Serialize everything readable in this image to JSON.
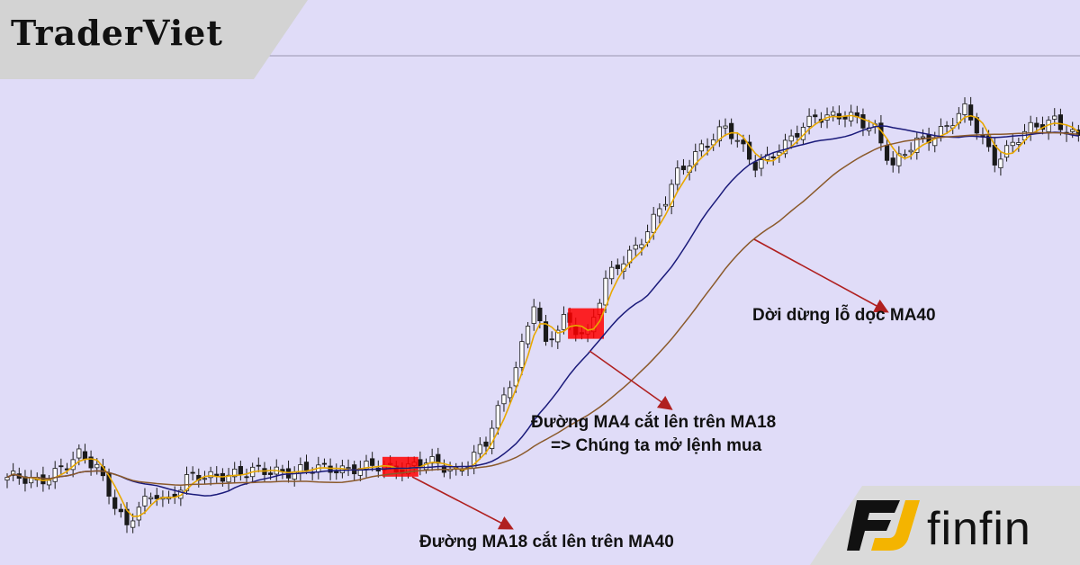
{
  "brand": {
    "top_left": "TraderViet",
    "bottom_right": "finfin"
  },
  "annotations": {
    "ma40": "Dời dừng lỗ dọc MA40",
    "ma4_line1": "Đường MA4 cắt lên trên MA18",
    "ma4_line2": "=> Chúng ta mở lệnh mua",
    "ma18": "Đường MA18 cắt lên trên MA40"
  },
  "colors": {
    "background": "#e0dcf8",
    "ma4": "#e8a800",
    "ma18": "#1a1a7a",
    "ma40": "#8b5a2b",
    "arrow": "#b02020",
    "signal_box": "#ff0000",
    "candle": "#1a1a1a"
  },
  "chart_data": {
    "type": "line",
    "xlabel": "",
    "ylabel": "",
    "grid": false,
    "legend": "none",
    "x_count": 180,
    "price_path": [
      [
        0,
        66
      ],
      [
        5,
        68
      ],
      [
        10,
        80
      ],
      [
        12,
        92
      ],
      [
        15,
        85
      ],
      [
        18,
        40
      ],
      [
        20,
        10
      ],
      [
        22,
        35
      ],
      [
        25,
        55
      ],
      [
        27,
        45
      ],
      [
        30,
        65
      ],
      [
        33,
        70
      ],
      [
        36,
        75
      ],
      [
        40,
        72
      ],
      [
        45,
        79
      ],
      [
        50,
        75
      ],
      [
        55,
        82
      ],
      [
        60,
        78
      ],
      [
        65,
        82
      ],
      [
        70,
        84
      ],
      [
        75,
        78
      ],
      [
        80,
        105
      ],
      [
        85,
        195
      ],
      [
        88,
        265
      ],
      [
        90,
        212
      ],
      [
        93,
        245
      ],
      [
        97,
        230
      ],
      [
        100,
        285
      ],
      [
        105,
        328
      ],
      [
        110,
        375
      ],
      [
        112,
        405
      ],
      [
        116,
        440
      ],
      [
        120,
        455
      ],
      [
        125,
        420
      ],
      [
        130,
        435
      ],
      [
        135,
        475
      ],
      [
        140,
        468
      ],
      [
        145,
        460
      ],
      [
        148,
        415
      ],
      [
        152,
        440
      ],
      [
        160,
        475
      ],
      [
        165,
        425
      ],
      [
        170,
        450
      ],
      [
        175,
        470
      ],
      [
        180,
        438
      ]
    ],
    "candle_half_range": 9,
    "ma_periods": [
      4,
      18,
      40
    ],
    "series": [],
    "signals": [
      {
        "index": 66,
        "span": 6,
        "label": "MA18 > MA40"
      },
      {
        "index": 97,
        "span": 6,
        "label": "MA4 > MA18"
      }
    ]
  }
}
